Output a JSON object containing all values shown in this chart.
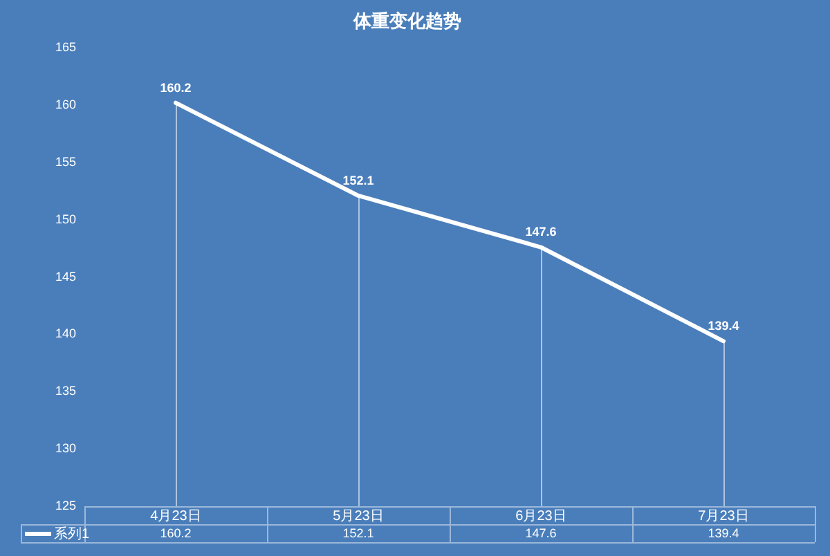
{
  "chart_data": {
    "type": "line",
    "title": "体重变化趋势",
    "categories": [
      "4月23日",
      "5月23日",
      "6月23日",
      "7月23日"
    ],
    "series": [
      {
        "name": "系列1",
        "color": "#ffffff",
        "values": [
          160.2,
          152.1,
          147.6,
          139.4
        ]
      }
    ],
    "ylim": [
      125,
      165
    ],
    "yticks": [
      125,
      130,
      135,
      140,
      145,
      150,
      155,
      160,
      165
    ],
    "annotations": [
      {
        "text": "160.2",
        "x": "4月23日",
        "y": 160.2
      },
      {
        "text": "152.1",
        "x": "5月23日",
        "y": 152.1
      },
      {
        "text": "147.6",
        "x": "6月23日",
        "y": 147.6
      },
      {
        "text": "139.4",
        "x": "7月23日",
        "y": 139.4
      }
    ],
    "data_labels": true,
    "legend": "bottom left"
  }
}
